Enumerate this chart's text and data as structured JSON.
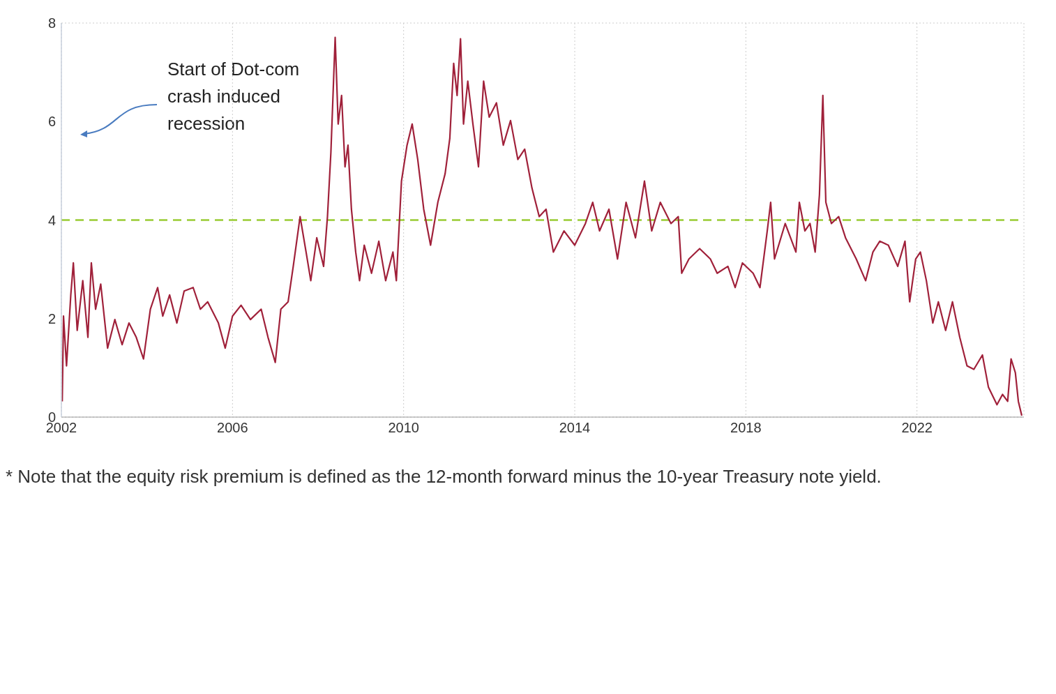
{
  "chart_data": {
    "type": "line",
    "x": [
      2002.02,
      2002.05,
      2002.12,
      2002.22,
      2002.28,
      2002.37,
      2002.5,
      2002.62,
      2002.7,
      2002.8,
      2002.92,
      2003.08,
      2003.25,
      2003.42,
      2003.58,
      2003.75,
      2003.92,
      2004.08,
      2004.25,
      2004.37,
      2004.53,
      2004.7,
      2004.87,
      2005.08,
      2005.25,
      2005.42,
      2005.67,
      2005.83,
      2006.0,
      2006.2,
      2006.42,
      2006.67,
      2006.83,
      2007.0,
      2007.13,
      2007.3,
      2007.42,
      2007.58,
      2007.72,
      2007.83,
      2007.97,
      2008.13,
      2008.22,
      2008.3,
      2008.4,
      2008.47,
      2008.55,
      2008.63,
      2008.7,
      2008.78,
      2008.88,
      2008.97,
      2009.08,
      2009.25,
      2009.42,
      2009.58,
      2009.75,
      2009.83,
      2009.95,
      2010.08,
      2010.2,
      2010.33,
      2010.47,
      2010.63,
      2010.8,
      2010.97,
      2011.08,
      2011.17,
      2011.25,
      2011.33,
      2011.4,
      2011.5,
      2011.62,
      2011.75,
      2011.87,
      2012.0,
      2012.17,
      2012.33,
      2012.5,
      2012.67,
      2012.83,
      2013.0,
      2013.17,
      2013.33,
      2013.5,
      2013.75,
      2014.0,
      2014.25,
      2014.42,
      2014.58,
      2014.8,
      2015.0,
      2015.2,
      2015.42,
      2015.63,
      2015.8,
      2016.0,
      2016.25,
      2016.42,
      2016.5,
      2016.67,
      2016.92,
      2017.17,
      2017.33,
      2017.58,
      2017.75,
      2017.92,
      2018.17,
      2018.33,
      2018.5,
      2018.58,
      2018.67,
      2018.92,
      2019.17,
      2019.25,
      2019.38,
      2019.5,
      2019.62,
      2019.72,
      2019.8,
      2019.87,
      2020.0,
      2020.17,
      2020.33,
      2020.58,
      2020.8,
      2020.97,
      2021.13,
      2021.33,
      2021.55,
      2021.72,
      2021.83,
      2021.97,
      2022.08,
      2022.22,
      2022.37,
      2022.5,
      2022.67,
      2022.83,
      2023.0,
      2023.17,
      2023.33,
      2023.53,
      2023.67,
      2023.87,
      2024.0,
      2024.12,
      2024.2,
      2024.3,
      2024.37,
      2024.45
    ],
    "series": [
      {
        "color": "#a0213a",
        "values": [
          0.32,
          2.05,
          1.04,
          2.48,
          3.13,
          1.76,
          2.77,
          1.62,
          3.13,
          2.19,
          2.7,
          1.4,
          1.98,
          1.47,
          1.91,
          1.62,
          1.18,
          2.19,
          2.63,
          2.05,
          2.48,
          1.91,
          2.56,
          2.63,
          2.19,
          2.34,
          1.91,
          1.4,
          2.05,
          2.27,
          1.98,
          2.19,
          1.62,
          1.11,
          2.19,
          2.34,
          3.06,
          4.07,
          3.35,
          2.77,
          3.64,
          3.06,
          4.07,
          5.37,
          7.71,
          5.95,
          6.53,
          5.08,
          5.52,
          4.22,
          3.35,
          2.77,
          3.49,
          2.92,
          3.57,
          2.77,
          3.35,
          2.77,
          4.79,
          5.52,
          5.95,
          5.23,
          4.22,
          3.49,
          4.36,
          4.94,
          5.66,
          7.18,
          6.53,
          7.68,
          5.95,
          6.82,
          5.95,
          5.08,
          6.82,
          6.09,
          6.38,
          5.52,
          6.02,
          5.23,
          5.44,
          4.65,
          4.07,
          4.22,
          3.35,
          3.78,
          3.49,
          3.93,
          4.36,
          3.78,
          4.22,
          3.21,
          4.36,
          3.64,
          4.79,
          3.78,
          4.36,
          3.93,
          4.07,
          2.92,
          3.21,
          3.42,
          3.21,
          2.92,
          3.06,
          2.63,
          3.13,
          2.92,
          2.63,
          3.78,
          4.36,
          3.21,
          3.93,
          3.35,
          4.36,
          3.78,
          3.93,
          3.35,
          4.51,
          6.53,
          4.36,
          3.93,
          4.07,
          3.64,
          3.21,
          2.77,
          3.35,
          3.57,
          3.49,
          3.06,
          3.57,
          2.34,
          3.21,
          3.35,
          2.77,
          1.91,
          2.34,
          1.76,
          2.34,
          1.62,
          1.04,
          0.97,
          1.26,
          0.61,
          0.25,
          0.46,
          0.32,
          1.18,
          0.9,
          0.32,
          0.03
        ]
      }
    ],
    "xlim": [
      2002,
      2024.5
    ],
    "xticks": [
      2002,
      2006,
      2010,
      2014,
      2018,
      2022
    ],
    "ylim": [
      0,
      8
    ],
    "yticks": [
      0,
      2,
      4,
      6,
      8
    ],
    "grid": true,
    "line_style": "solid",
    "ref_lines": [
      {
        "axis": "y",
        "value": 4,
        "color": "#99cc33",
        "line_style": "dashed"
      }
    ],
    "annotations": [
      "Start of Dot-com crash induced recession",
      "* Note that the equity risk premium is defined as the 12-month forward minus the 10-year Treasury note yield."
    ]
  }
}
